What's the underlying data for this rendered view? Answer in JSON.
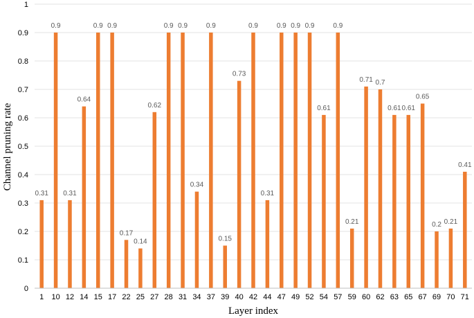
{
  "chart_data": {
    "type": "bar",
    "title": "",
    "xlabel": "Layer index",
    "ylabel": "Channel pruning rate",
    "ylim": [
      0,
      1
    ],
    "yticks": [
      "0",
      "0.1",
      "0.2",
      "0.3",
      "0.4",
      "0.5",
      "0.6",
      "0.7",
      "0.8",
      "0.9",
      "1"
    ],
    "grid": true,
    "legend": "none",
    "bar_color": "#ED7D31",
    "categories": [
      "1",
      "10",
      "12",
      "14",
      "15",
      "17",
      "22",
      "25",
      "27",
      "28",
      "31",
      "34",
      "37",
      "39",
      "40",
      "42",
      "44",
      "47",
      "49",
      "52",
      "54",
      "57",
      "59",
      "60",
      "62",
      "63",
      "65",
      "67",
      "69",
      "70",
      "71"
    ],
    "values": [
      0.31,
      0.9,
      0.31,
      0.64,
      0.9,
      0.9,
      0.17,
      0.14,
      0.62,
      0.9,
      0.9,
      0.34,
      0.9,
      0.15,
      0.73,
      0.9,
      0.31,
      0.9,
      0.9,
      0.9,
      0.61,
      0.9,
      0.21,
      0.71,
      0.7,
      0.61,
      0.61,
      0.65,
      0.2,
      0.21,
      0.41
    ],
    "data_labels": [
      "0.31",
      "0.9",
      "0.31",
      "0.64",
      "0.9",
      "0.9",
      "0.17",
      "0.14",
      "0.62",
      "0.9",
      "0.9",
      "0.34",
      "0.9",
      "0.15",
      "0.73",
      "0.9",
      "0.31",
      "0.9",
      "0.9",
      "0.9",
      "0.61",
      "0.9",
      "0.21",
      "0.71",
      "0.7",
      "0.61",
      "0.61",
      "0.65",
      "0.2",
      "0.21",
      "0.41"
    ]
  }
}
